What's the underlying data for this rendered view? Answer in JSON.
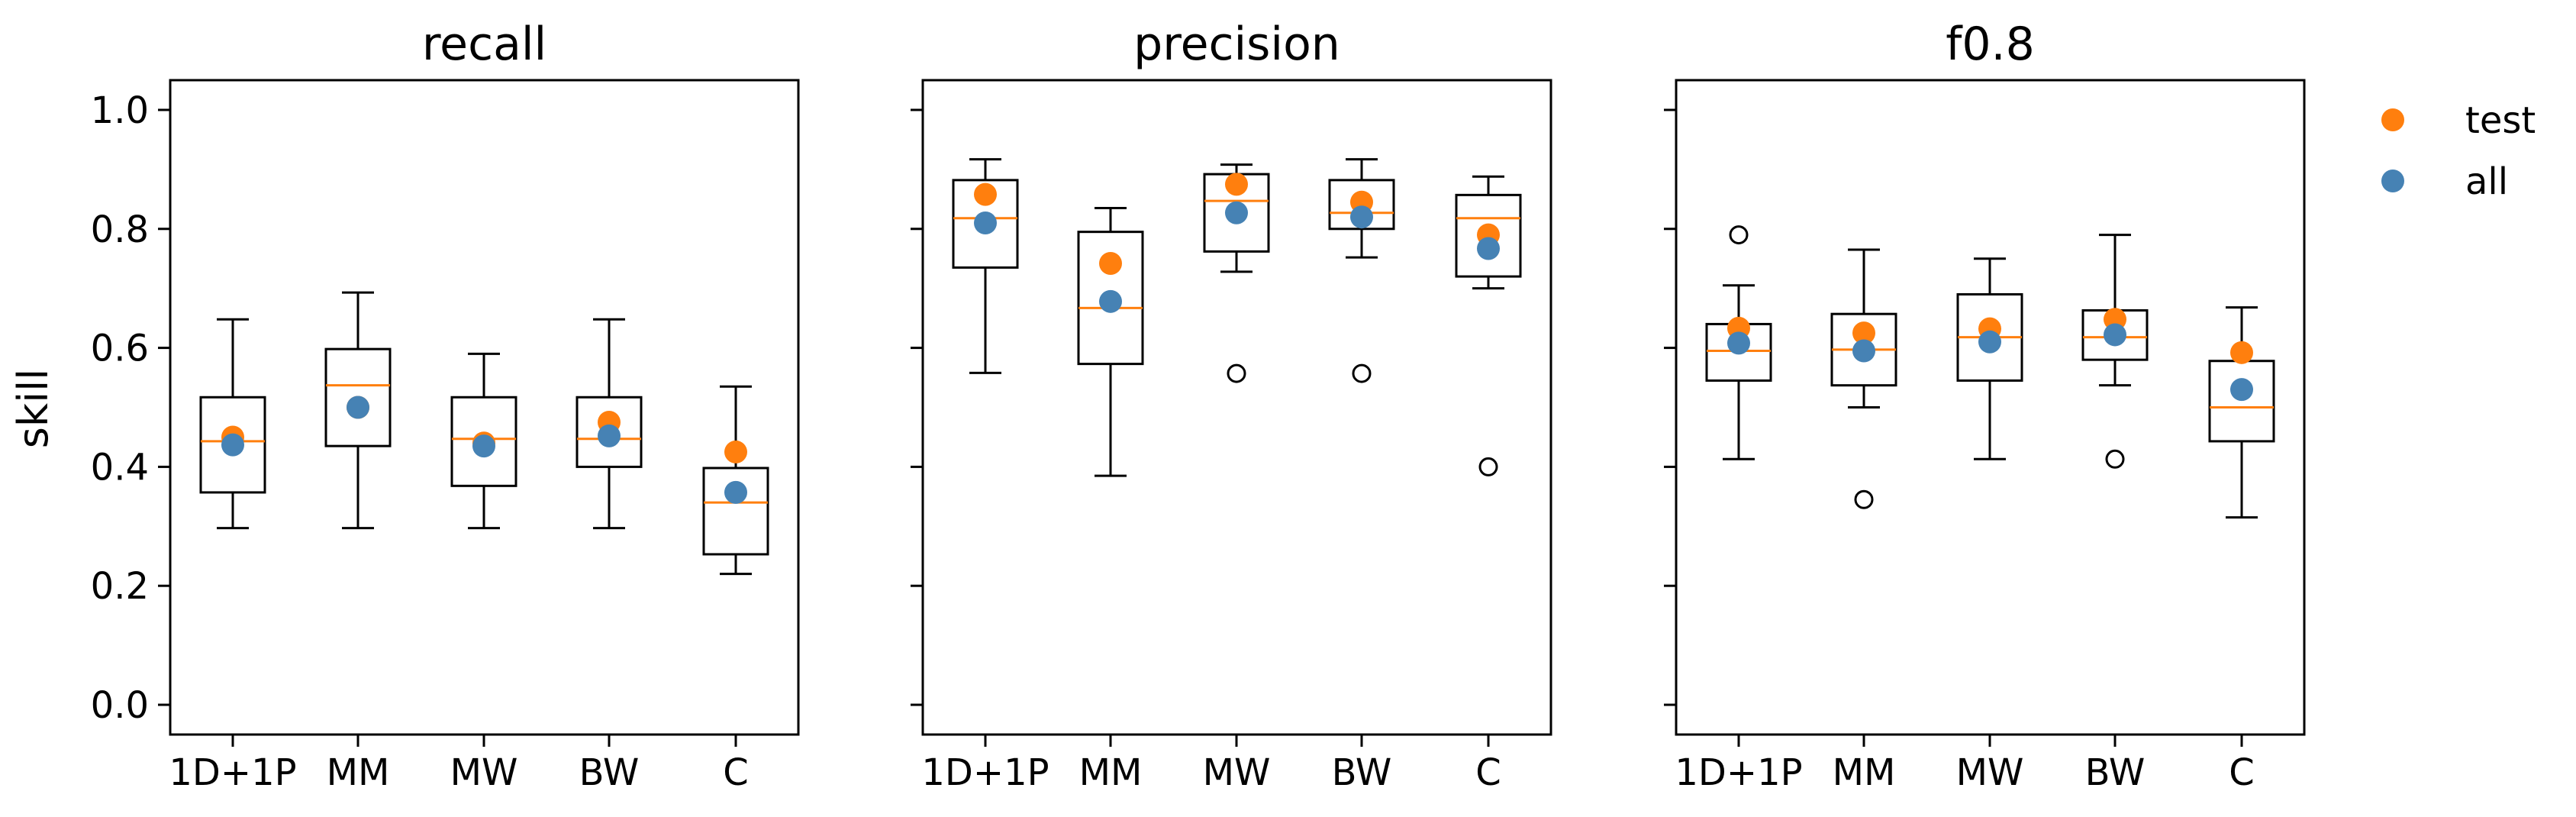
{
  "chart_data": {
    "type": "box",
    "ylabel": "skill",
    "ylim": [
      -0.05,
      1.05
    ],
    "yticks": [
      0.0,
      0.2,
      0.4,
      0.6,
      0.8,
      1.0
    ],
    "ytick_labels": [
      "0.0",
      "0.2",
      "0.4",
      "0.6",
      "0.8",
      "1.0"
    ],
    "categories": [
      "1D+1P",
      "MM",
      "MW",
      "BW",
      "C"
    ],
    "legend": {
      "position": "outside-right-top",
      "entries": [
        {
          "name": "test",
          "color": "#ff7f0e"
        },
        {
          "name": "all",
          "color": "#4682b4"
        }
      ]
    },
    "colors": {
      "median": "#ff7f0e",
      "test": "#ff7f0e",
      "all": "#4682b4",
      "box": "#000000"
    },
    "panels": [
      {
        "title": "recall",
        "boxes": [
          {
            "category": "1D+1P",
            "whisker_low": 0.297,
            "q1": 0.357,
            "median": 0.443,
            "q3": 0.517,
            "whisker_high": 0.648,
            "outliers": [],
            "test": 0.45,
            "all": 0.437
          },
          {
            "category": "MM",
            "whisker_low": 0.297,
            "q1": 0.435,
            "median": 0.537,
            "q3": 0.598,
            "whisker_high": 0.693,
            "outliers": [],
            "test": 0.5,
            "all": 0.5
          },
          {
            "category": "MW",
            "whisker_low": 0.297,
            "q1": 0.368,
            "median": 0.447,
            "q3": 0.517,
            "whisker_high": 0.59,
            "outliers": [],
            "test": 0.44,
            "all": 0.435
          },
          {
            "category": "BW",
            "whisker_low": 0.297,
            "q1": 0.4,
            "median": 0.447,
            "q3": 0.517,
            "whisker_high": 0.648,
            "outliers": [],
            "test": 0.475,
            "all": 0.452
          },
          {
            "category": "C",
            "whisker_low": 0.22,
            "q1": 0.253,
            "median": 0.34,
            "q3": 0.398,
            "whisker_high": 0.535,
            "outliers": [],
            "test": 0.425,
            "all": 0.357
          }
        ]
      },
      {
        "title": "precision",
        "boxes": [
          {
            "category": "1D+1P",
            "whisker_low": 0.558,
            "q1": 0.735,
            "median": 0.818,
            "q3": 0.882,
            "whisker_high": 0.917,
            "outliers": [],
            "test": 0.858,
            "all": 0.81
          },
          {
            "category": "MM",
            "whisker_low": 0.385,
            "q1": 0.573,
            "median": 0.667,
            "q3": 0.795,
            "whisker_high": 0.835,
            "outliers": [],
            "test": 0.742,
            "all": 0.678
          },
          {
            "category": "MW",
            "whisker_low": 0.728,
            "q1": 0.762,
            "median": 0.847,
            "q3": 0.892,
            "whisker_high": 0.908,
            "outliers": [
              0.557
            ],
            "test": 0.875,
            "all": 0.827
          },
          {
            "category": "BW",
            "whisker_low": 0.752,
            "q1": 0.8,
            "median": 0.827,
            "q3": 0.882,
            "whisker_high": 0.917,
            "outliers": [
              0.557
            ],
            "test": 0.845,
            "all": 0.82
          },
          {
            "category": "C",
            "whisker_low": 0.7,
            "q1": 0.72,
            "median": 0.818,
            "q3": 0.857,
            "whisker_high": 0.888,
            "outliers": [
              0.4
            ],
            "test": 0.79,
            "all": 0.767
          }
        ]
      },
      {
        "title": "f0.8",
        "boxes": [
          {
            "category": "1D+1P",
            "whisker_low": 0.413,
            "q1": 0.545,
            "median": 0.595,
            "q3": 0.64,
            "whisker_high": 0.705,
            "outliers": [
              0.79
            ],
            "test": 0.633,
            "all": 0.608
          },
          {
            "category": "MM",
            "whisker_low": 0.5,
            "q1": 0.537,
            "median": 0.597,
            "q3": 0.657,
            "whisker_high": 0.765,
            "outliers": [
              0.345
            ],
            "test": 0.625,
            "all": 0.595
          },
          {
            "category": "MW",
            "whisker_low": 0.413,
            "q1": 0.545,
            "median": 0.618,
            "q3": 0.69,
            "whisker_high": 0.75,
            "outliers": [],
            "test": 0.632,
            "all": 0.61
          },
          {
            "category": "BW",
            "whisker_low": 0.537,
            "q1": 0.58,
            "median": 0.618,
            "q3": 0.663,
            "whisker_high": 0.79,
            "outliers": [
              0.413
            ],
            "test": 0.648,
            "all": 0.622
          },
          {
            "category": "C",
            "whisker_low": 0.315,
            "q1": 0.443,
            "median": 0.5,
            "q3": 0.578,
            "whisker_high": 0.668,
            "outliers": [],
            "test": 0.592,
            "all": 0.53
          }
        ]
      }
    ]
  }
}
